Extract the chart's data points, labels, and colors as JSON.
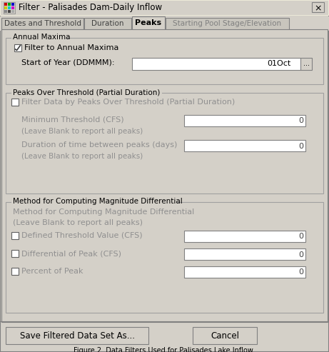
{
  "title": "Filter - Palisades Dam-Daily Inflow",
  "bg_color": "#d4d0c8",
  "white": "#ffffff",
  "section1_title": "Annual Maxima",
  "checkbox1_label": "Filter to Annual Maxima",
  "start_of_year_label": "Start of Year (DDMMM):",
  "start_of_year_value": "01Oct",
  "section2_title": "Peaks Over Threshold (Partial Duration)",
  "checkbox2_label": "Filter Data by Peaks Over Threshold (Partial Duration)",
  "min_threshold_label": "Minimum Threshold (CFS)",
  "min_threshold_sub": "(Leave Blank to report all peaks)",
  "min_threshold_value": "0",
  "duration_label": "Duration of time between peaks (days)",
  "duration_sub": "(Leave Blank to report all peaks)",
  "duration_value": "0",
  "section3_title": "Method for Computing Magnitude Differential",
  "section3_sub1": "Method for Computing Magnitude Differential",
  "section3_sub2": "(Leave Blank to report all peaks)",
  "cb3_label": "Defined Threshold Value (CFS)",
  "cb3_value": "0",
  "cb4_label": "Differential of Peak (CFS)",
  "cb4_value": "0",
  "cb5_label": "Percent of Peak",
  "cb5_value": "0",
  "btn1": "Save Filtered Data Set As...",
  "btn2": "Cancel",
  "caption": "Figure 2. Data Filters Used for Palisades Lake Inflow.",
  "tabs": [
    "Dates and Threshold",
    "Duration",
    "Peaks",
    "Starting Pool Stage/Elevation"
  ]
}
